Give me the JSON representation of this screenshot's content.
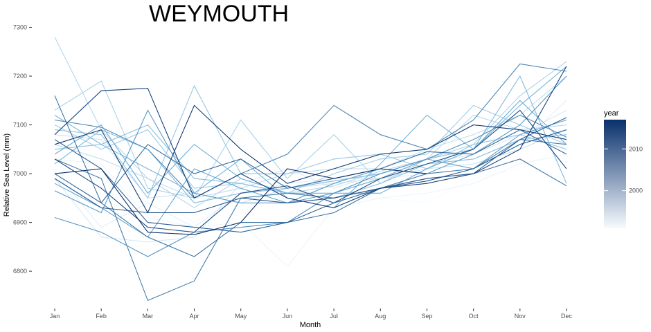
{
  "chart_data": {
    "type": "line",
    "title": "WEYMOUTH",
    "xlabel": "Month",
    "ylabel": "Relative Sea Level (mm)",
    "categories": [
      "Jan",
      "Feb",
      "Mar",
      "Apr",
      "May",
      "Jun",
      "Jul",
      "Aug",
      "Sep",
      "Oct",
      "Nov",
      "Dec"
    ],
    "ylim": [
      6725,
      7305
    ],
    "yticks": [
      6800,
      6900,
      7000,
      7100,
      7200,
      7300
    ],
    "grid": false,
    "legend": {
      "title": "year",
      "position": "right",
      "min_year": 1991,
      "max_year": 2017,
      "ticks": [
        2000,
        2010
      ],
      "color_low": "#f7fbff",
      "color_high": "#08306b"
    },
    "series": [
      {
        "year": 1991,
        "values": [
          7010,
          6940,
          6960,
          6900,
          6950,
          6960,
          6945,
          6950,
          6940,
          6990,
          7010,
          7060
        ]
      },
      {
        "year": 1992,
        "values": [
          7030,
          7020,
          6910,
          6890,
          6900,
          6810,
          6930,
          6950,
          6960,
          6980,
          7020,
          7040
        ]
      },
      {
        "year": 1993,
        "values": [
          7005,
          6890,
          6940,
          6890,
          6960,
          6980,
          6990,
          6990,
          7000,
          7010,
          7060,
          7150
        ]
      },
      {
        "year": 1994,
        "values": [
          6990,
          6870,
          6860,
          6870,
          6980,
          7010,
          6970,
          7000,
          7020,
          7040,
          7080,
          7130
        ]
      },
      {
        "year": 1995,
        "values": [
          7080,
          7070,
          6950,
          6960,
          6940,
          6970,
          6980,
          6990,
          7010,
          7020,
          7050,
          7090
        ]
      },
      {
        "year": 1996,
        "values": [
          7060,
          7030,
          6990,
          6950,
          6970,
          7000,
          7010,
          7010,
          7050,
          7080,
          7120,
          7200
        ]
      },
      {
        "year": 1997,
        "values": [
          7280,
          7090,
          6990,
          6930,
          6990,
          6960,
          6975,
          7005,
          7030,
          7120,
          7090,
          7100
        ]
      },
      {
        "year": 1998,
        "values": [
          7130,
          7190,
          6970,
          6950,
          7110,
          6990,
          7080,
          6980,
          7030,
          7060,
          7160,
          7230
        ]
      },
      {
        "year": 1999,
        "values": [
          7100,
          7050,
          7090,
          6970,
          6980,
          6960,
          7000,
          7030,
          7040,
          7140,
          7100,
          7060
        ]
      },
      {
        "year": 2000,
        "values": [
          7090,
          7080,
          6950,
          7180,
          7000,
          7000,
          7030,
          7040,
          7010,
          7060,
          7080,
          7050
        ]
      },
      {
        "year": 2001,
        "values": [
          7050,
          7060,
          7100,
          6990,
          6980,
          6960,
          6950,
          6980,
          7020,
          7030,
          7070,
          7080
        ]
      },
      {
        "year": 2002,
        "values": [
          7020,
          7090,
          7050,
          6940,
          6960,
          6970,
          6985,
          7000,
          7030,
          7050,
          7200,
          6980
        ]
      },
      {
        "year": 2003,
        "values": [
          7120,
          7060,
          7010,
          6960,
          7030,
          6950,
          6930,
          7020,
          7120,
          7050,
          7140,
          7220
        ]
      },
      {
        "year": 2004,
        "values": [
          7040,
          7100,
          6960,
          7060,
          6990,
          6960,
          6960,
          6960,
          7010,
          7050,
          7150,
          7060
        ]
      },
      {
        "year": 2005,
        "values": [
          6980,
          6930,
          6870,
          7010,
          6970,
          6940,
          6960,
          6990,
          7030,
          7010,
          7080,
          7110
        ]
      },
      {
        "year": 2006,
        "values": [
          6965,
          6920,
          7130,
          6960,
          6940,
          6940,
          6980,
          7010,
          7000,
          7040,
          7100,
          7200
        ]
      },
      {
        "year": 2007,
        "values": [
          6910,
          6880,
          6830,
          6880,
          6890,
          6900,
          6960,
          7000,
          7030,
          7070,
          7120,
          7075
        ]
      },
      {
        "year": 2008,
        "values": [
          7110,
          7095,
          7050,
          6950,
          7000,
          7040,
          7140,
          7080,
          7050,
          7110,
          7225,
          7210
        ]
      },
      {
        "year": 2009,
        "values": [
          7030,
          6990,
          6740,
          6780,
          6950,
          6960,
          6950,
          6970,
          7000,
          7010,
          7070,
          7060
        ]
      },
      {
        "year": 2010,
        "values": [
          7160,
          6940,
          6870,
          6830,
          6900,
          6900,
          6920,
          6970,
          6990,
          7000,
          7030,
          6975
        ]
      },
      {
        "year": 2011,
        "values": [
          7000,
          6940,
          7060,
          7000,
          7030,
          6970,
          6990,
          7010,
          7045,
          7040,
          7090,
          7040
        ]
      },
      {
        "year": 2012,
        "values": [
          7070,
          7010,
          6900,
          6890,
          6880,
          6900,
          6940,
          6970,
          6990,
          7000,
          7070,
          7115
        ]
      },
      {
        "year": 2013,
        "values": [
          6990,
          6930,
          6920,
          6920,
          6950,
          6940,
          6950,
          6970,
          6985,
          7010,
          7060,
          7090
        ]
      },
      {
        "year": 2014,
        "values": [
          7030,
          6970,
          6890,
          6880,
          6960,
          6975,
          6940,
          6990,
          7020,
          7050,
          7130,
          7010
        ]
      },
      {
        "year": 2015,
        "values": [
          7080,
          7170,
          7175,
          6950,
          7000,
          6950,
          6930,
          6970,
          6980,
          7000,
          7050,
          7220
        ]
      },
      {
        "year": 2016,
        "values": [
          7060,
          7090,
          6920,
          7140,
          7050,
          6980,
          7010,
          7040,
          7050,
          7100,
          7090,
          7070
        ]
      },
      {
        "year": 2017,
        "values": [
          7000,
          7010,
          6880,
          6875,
          6900,
          7010,
          6990,
          7010,
          7000,
          null,
          null,
          null
        ]
      }
    ]
  }
}
